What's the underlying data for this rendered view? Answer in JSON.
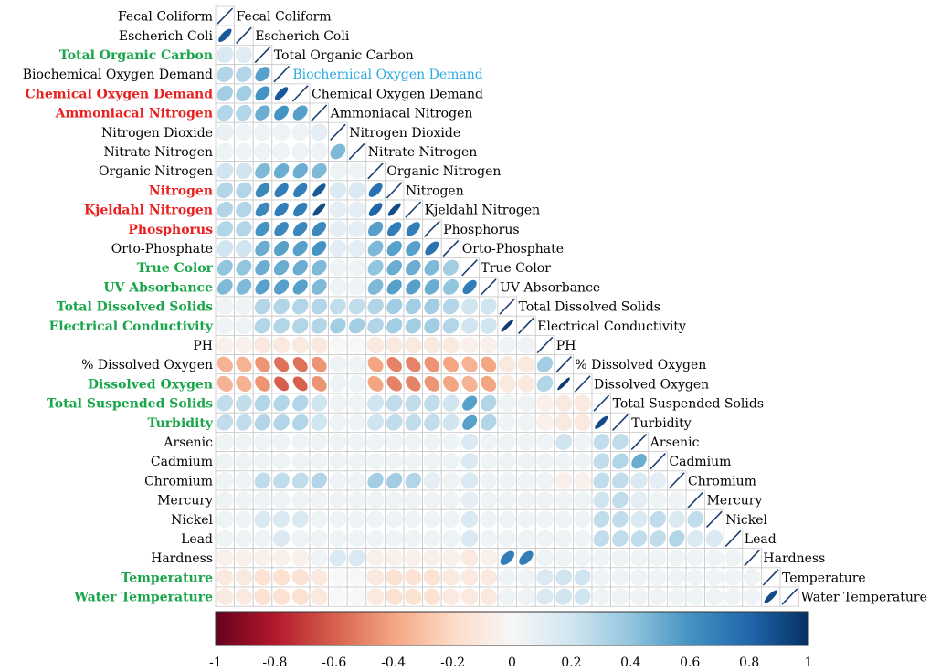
{
  "chart_data": {
    "type": "heatmap",
    "variables": [
      {
        "name": "Fecal Coliform",
        "color": "#000000",
        "bold": false
      },
      {
        "name": "Escherich Coli",
        "color": "#000000",
        "bold": false
      },
      {
        "name": "Total Organic Carbon",
        "color": "#1aa54a",
        "bold": true
      },
      {
        "name": "Biochemical Oxygen Demand",
        "color": "#000000",
        "bold": false
      },
      {
        "name": "Chemical Oxygen Demand",
        "color": "#e8201f",
        "bold": true
      },
      {
        "name": "Ammoniacal Nitrogen",
        "color": "#e8201f",
        "bold": true
      },
      {
        "name": "Nitrogen Dioxide",
        "color": "#000000",
        "bold": false
      },
      {
        "name": "Nitrate Nitrogen",
        "color": "#000000",
        "bold": false
      },
      {
        "name": "Organic Nitrogen",
        "color": "#000000",
        "bold": false
      },
      {
        "name": "Nitrogen",
        "color": "#e8201f",
        "bold": true
      },
      {
        "name": "Kjeldahl Nitrogen",
        "color": "#e8201f",
        "bold": true
      },
      {
        "name": "Phosphorus",
        "color": "#e8201f",
        "bold": true
      },
      {
        "name": "Orto-Phosphate",
        "color": "#000000",
        "bold": false
      },
      {
        "name": "True Color",
        "color": "#1aa54a",
        "bold": true
      },
      {
        "name": "UV Absorbance",
        "color": "#1aa54a",
        "bold": true
      },
      {
        "name": "Total Dissolved Solids",
        "color": "#1aa54a",
        "bold": true
      },
      {
        "name": "Electrical Conductivity",
        "color": "#1aa54a",
        "bold": true
      },
      {
        "name": "PH",
        "color": "#000000",
        "bold": false
      },
      {
        "name": "% Dissolved Oxygen",
        "color": "#000000",
        "bold": false
      },
      {
        "name": "Dissolved Oxygen",
        "color": "#1aa54a",
        "bold": true
      },
      {
        "name": "Total Suspended Solids",
        "color": "#1aa54a",
        "bold": true
      },
      {
        "name": "Turbidity",
        "color": "#1aa54a",
        "bold": true
      },
      {
        "name": "Arsenic",
        "color": "#000000",
        "bold": false
      },
      {
        "name": "Cadmium",
        "color": "#000000",
        "bold": false
      },
      {
        "name": "Chromium",
        "color": "#000000",
        "bold": false
      },
      {
        "name": "Mercury",
        "color": "#000000",
        "bold": false
      },
      {
        "name": "Nickel",
        "color": "#000000",
        "bold": false
      },
      {
        "name": "Lead",
        "color": "#000000",
        "bold": false
      },
      {
        "name": "Hardness",
        "color": "#000000",
        "bold": false
      },
      {
        "name": "Temperature",
        "color": "#1aa54a",
        "bold": true
      },
      {
        "name": "Water Temperature",
        "color": "#1aa54a",
        "bold": true
      }
    ],
    "diagonal_label_colors": {
      "Biochemical Oxygen Demand": "#29a9e0"
    },
    "correlations_lower": [
      [],
      [
        0.85
      ],
      [
        0.15,
        0.12
      ],
      [
        0.3,
        0.3,
        0.55
      ],
      [
        0.35,
        0.35,
        0.6,
        0.85
      ],
      [
        0.3,
        0.3,
        0.5,
        0.6,
        0.55
      ],
      [
        0.08,
        0.05,
        0.05,
        0.05,
        0.05,
        0.1
      ],
      [
        0.05,
        0.05,
        0.05,
        0.05,
        0.05,
        0.05,
        0.45
      ],
      [
        0.2,
        0.2,
        0.45,
        0.5,
        0.5,
        0.45,
        0.05,
        0.05
      ],
      [
        0.3,
        0.3,
        0.65,
        0.7,
        0.7,
        0.85,
        0.15,
        0.15,
        0.75
      ],
      [
        0.3,
        0.3,
        0.65,
        0.7,
        0.7,
        0.9,
        0.1,
        0.1,
        0.8,
        0.9
      ],
      [
        0.3,
        0.3,
        0.6,
        0.65,
        0.65,
        0.65,
        0.1,
        0.1,
        0.55,
        0.7,
        0.7
      ],
      [
        0.2,
        0.2,
        0.5,
        0.55,
        0.55,
        0.6,
        0.1,
        0.1,
        0.45,
        0.55,
        0.55,
        0.75
      ],
      [
        0.4,
        0.4,
        0.5,
        0.5,
        0.5,
        0.45,
        0.05,
        0.05,
        0.4,
        0.5,
        0.5,
        0.45,
        0.35
      ],
      [
        0.45,
        0.45,
        0.55,
        0.55,
        0.55,
        0.45,
        0.05,
        0.05,
        0.45,
        0.55,
        0.55,
        0.5,
        0.4,
        0.7
      ],
      [
        0.05,
        0.05,
        0.3,
        0.3,
        0.3,
        0.3,
        0.25,
        0.25,
        0.3,
        0.35,
        0.35,
        0.35,
        0.3,
        0.2,
        0.2
      ],
      [
        0.05,
        0.05,
        0.3,
        0.3,
        0.3,
        0.3,
        0.35,
        0.35,
        0.3,
        0.35,
        0.35,
        0.35,
        0.3,
        0.2,
        0.2,
        0.95
      ],
      [
        -0.05,
        -0.05,
        -0.1,
        -0.1,
        -0.1,
        -0.1,
        0.0,
        0.0,
        -0.1,
        -0.1,
        -0.1,
        -0.1,
        -0.1,
        -0.05,
        -0.05,
        0.05,
        0.05
      ],
      [
        -0.35,
        -0.35,
        -0.45,
        -0.55,
        -0.55,
        -0.45,
        0.05,
        0.05,
        -0.4,
        -0.5,
        -0.5,
        -0.45,
        -0.4,
        -0.35,
        -0.4,
        -0.1,
        -0.1,
        0.35
      ],
      [
        -0.35,
        -0.35,
        -0.45,
        -0.6,
        -0.6,
        -0.45,
        0.05,
        0.05,
        -0.4,
        -0.5,
        -0.5,
        -0.45,
        -0.4,
        -0.35,
        -0.4,
        -0.1,
        -0.1,
        0.3,
        0.95
      ],
      [
        0.25,
        0.25,
        0.3,
        0.3,
        0.3,
        0.2,
        0.05,
        0.05,
        0.2,
        0.25,
        0.25,
        0.25,
        0.2,
        0.55,
        0.3,
        0.05,
        0.05,
        -0.05,
        -0.1,
        -0.1
      ],
      [
        0.25,
        0.25,
        0.3,
        0.3,
        0.3,
        0.2,
        0.05,
        0.05,
        0.2,
        0.25,
        0.25,
        0.25,
        0.2,
        0.55,
        0.3,
        0.05,
        0.05,
        -0.05,
        -0.1,
        -0.1,
        0.9
      ],
      [
        0.05,
        0.05,
        0.05,
        0.05,
        0.05,
        0.05,
        0.05,
        0.05,
        0.05,
        0.05,
        0.05,
        0.05,
        0.05,
        0.15,
        0.05,
        0.05,
        0.05,
        0.05,
        0.2,
        0.05,
        0.25,
        0.25
      ],
      [
        0.05,
        0.05,
        0.05,
        0.05,
        0.05,
        0.05,
        0.05,
        0.05,
        0.05,
        0.05,
        0.05,
        0.05,
        0.05,
        0.15,
        0.05,
        0.05,
        0.05,
        0.05,
        0.05,
        0.05,
        0.25,
        0.3,
        0.5
      ],
      [
        0.05,
        0.05,
        0.25,
        0.25,
        0.25,
        0.3,
        0.05,
        0.05,
        0.35,
        0.35,
        0.3,
        0.1,
        0.05,
        0.15,
        0.05,
        0.05,
        0.05,
        0.05,
        -0.05,
        -0.05,
        0.25,
        0.25,
        0.15,
        0.1
      ],
      [
        0.05,
        0.05,
        0.05,
        0.05,
        0.05,
        0.05,
        0.05,
        0.05,
        0.05,
        0.05,
        0.05,
        0.05,
        0.05,
        0.1,
        0.05,
        0.05,
        0.05,
        0.05,
        0.05,
        0.05,
        0.2,
        0.25,
        0.1,
        0.05,
        0.05
      ],
      [
        0.05,
        0.05,
        0.15,
        0.15,
        0.15,
        0.05,
        0.05,
        0.05,
        0.05,
        0.05,
        0.05,
        0.05,
        0.05,
        0.15,
        0.05,
        0.05,
        0.05,
        0.05,
        0.05,
        0.05,
        0.25,
        0.25,
        0.15,
        0.25,
        0.15,
        0.25
      ],
      [
        0.05,
        0.05,
        0.05,
        0.15,
        0.05,
        0.05,
        0.05,
        0.05,
        0.05,
        0.05,
        0.05,
        0.05,
        0.05,
        0.15,
        0.05,
        0.05,
        0.05,
        0.05,
        0.05,
        0.05,
        0.25,
        0.25,
        0.25,
        0.25,
        0.3,
        0.15,
        0.15
      ],
      [
        -0.05,
        -0.05,
        -0.05,
        -0.05,
        -0.05,
        0.05,
        0.15,
        0.15,
        -0.05,
        -0.05,
        -0.05,
        -0.05,
        -0.05,
        -0.1,
        -0.05,
        0.7,
        0.7,
        0.05,
        0.05,
        0.05,
        0.05,
        0.05,
        0.05,
        0.05,
        0.05,
        0.05,
        0.05,
        0.05
      ],
      [
        -0.1,
        -0.1,
        -0.15,
        -0.15,
        -0.15,
        -0.1,
        0.0,
        0.0,
        -0.1,
        -0.15,
        -0.15,
        -0.15,
        -0.1,
        -0.1,
        -0.1,
        0.05,
        0.05,
        0.15,
        0.2,
        0.2,
        0.05,
        0.05,
        0.05,
        0.05,
        0.05,
        0.05,
        0.05,
        0.05,
        0.05
      ],
      [
        -0.1,
        -0.1,
        -0.15,
        -0.15,
        -0.15,
        -0.1,
        0.0,
        0.0,
        -0.1,
        -0.15,
        -0.15,
        -0.15,
        -0.1,
        -0.1,
        -0.1,
        0.05,
        0.05,
        0.15,
        0.2,
        0.2,
        0.05,
        0.05,
        0.05,
        0.05,
        0.05,
        0.05,
        0.05,
        0.05,
        0.05,
        0.9
      ]
    ],
    "colorbar": {
      "range": [
        -1,
        1
      ],
      "ticks": [
        "-1",
        "-0.8",
        "-0.6",
        "-0.4",
        "-0.2",
        "0",
        "0.2",
        "0.4",
        "0.6",
        "0.8",
        "1"
      ],
      "low_color": "#67001f",
      "mid_color": "#f7f7f7",
      "high_color": "#053061"
    },
    "legend_placement": "bottom"
  }
}
